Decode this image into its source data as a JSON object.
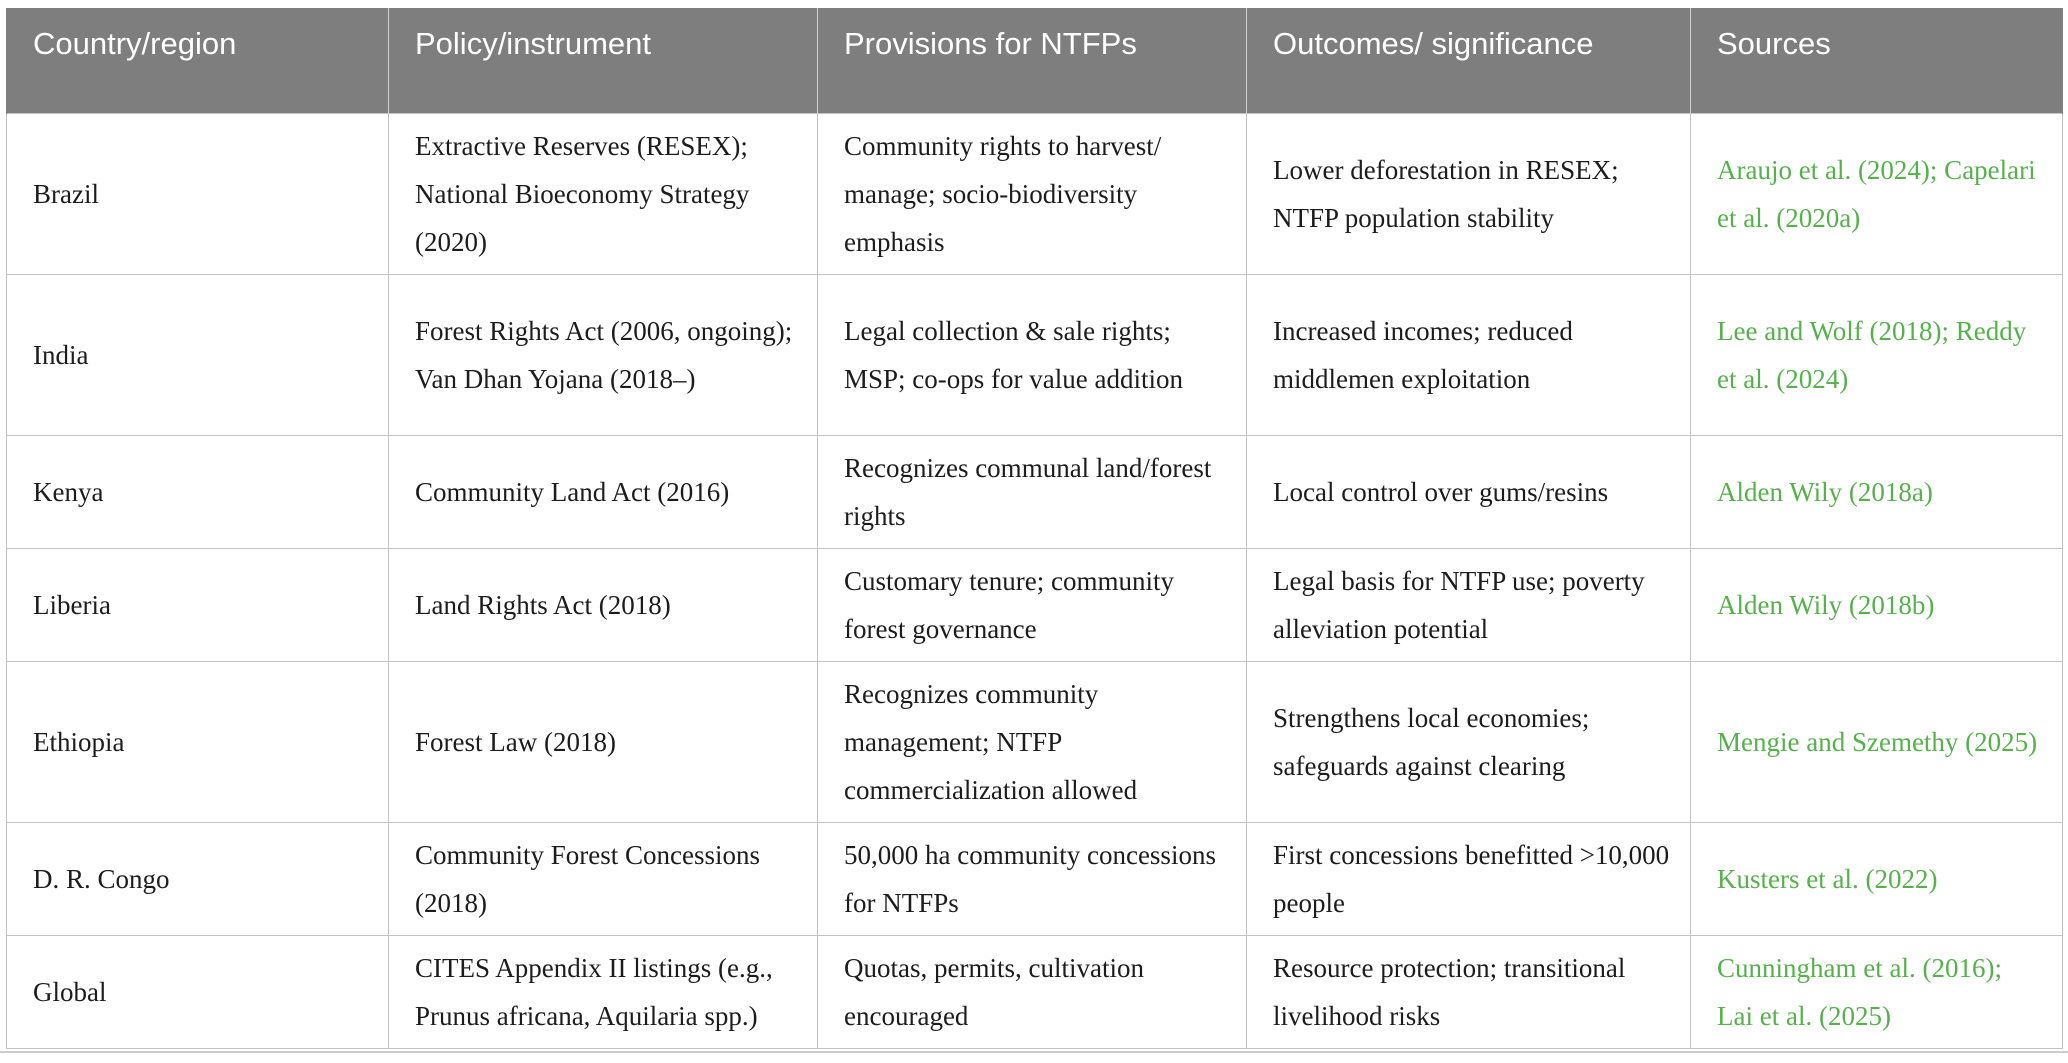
{
  "table": {
    "headers": [
      "Country/region",
      "Policy/instrument",
      "Provisions for NTFPs",
      "Outcomes/ significance",
      "Sources"
    ],
    "rows": [
      {
        "country": "Brazil",
        "policy": "Extractive Reserves (RESEX); National Bioeconomy Strategy (2020)",
        "provisions": "Community rights to harvest/ manage; socio-biodiversity emphasis",
        "outcomes": "Lower deforestation in RESEX; NTFP population stability",
        "sources": "Araujo et al. (2024); Capelari et al. (2020a)"
      },
      {
        "country": "India",
        "policy": "Forest Rights Act (2006, ongoing); Van Dhan Yojana (2018–)",
        "provisions": "Legal collection & sale rights; MSP; co-ops for value addition",
        "outcomes": "Increased incomes; reduced middlemen exploitation",
        "sources": "Lee and Wolf (2018); Reddy et al. (2024)"
      },
      {
        "country": "Kenya",
        "policy": "Community Land Act (2016)",
        "provisions": "Recognizes communal land/forest rights",
        "outcomes": "Local control over gums/resins",
        "sources": "Alden Wily (2018a)"
      },
      {
        "country": "Liberia",
        "policy": "Land Rights Act (2018)",
        "provisions": "Customary tenure; community forest governance",
        "outcomes": "Legal basis for NTFP use; poverty alleviation potential",
        "sources": "Alden Wily (2018b)"
      },
      {
        "country": "Ethiopia",
        "policy": "Forest Law (2018)",
        "provisions": "Recognizes community management; NTFP commercialization allowed",
        "outcomes": "Strengthens local economies; safeguards against clearing",
        "sources": "Mengie and Szemethy (2025)"
      },
      {
        "country": "D. R. Congo",
        "policy": "Community Forest Concessions (2018)",
        "provisions": "50,000 ha community concessions for NTFPs",
        "outcomes": "First concessions benefitted >10,000 people",
        "sources": "Kusters et al. (2022)"
      },
      {
        "country": "Global",
        "policy": "CITES Appendix II listings (e.g., Prunus africana, Aquilaria spp.)",
        "provisions": "Quotas, permits, cultivation encouraged",
        "outcomes": "Resource protection; transitional livelihood risks",
        "sources": "Cunningham et al. (2016); Lai et al. (2025)"
      }
    ],
    "colors": {
      "header_background": "#7e7e7e",
      "header_text": "#ffffff",
      "body_text": "#1c1c1c",
      "source_link_green": "#56b04c",
      "grid_line": "#c3c3c3"
    }
  }
}
